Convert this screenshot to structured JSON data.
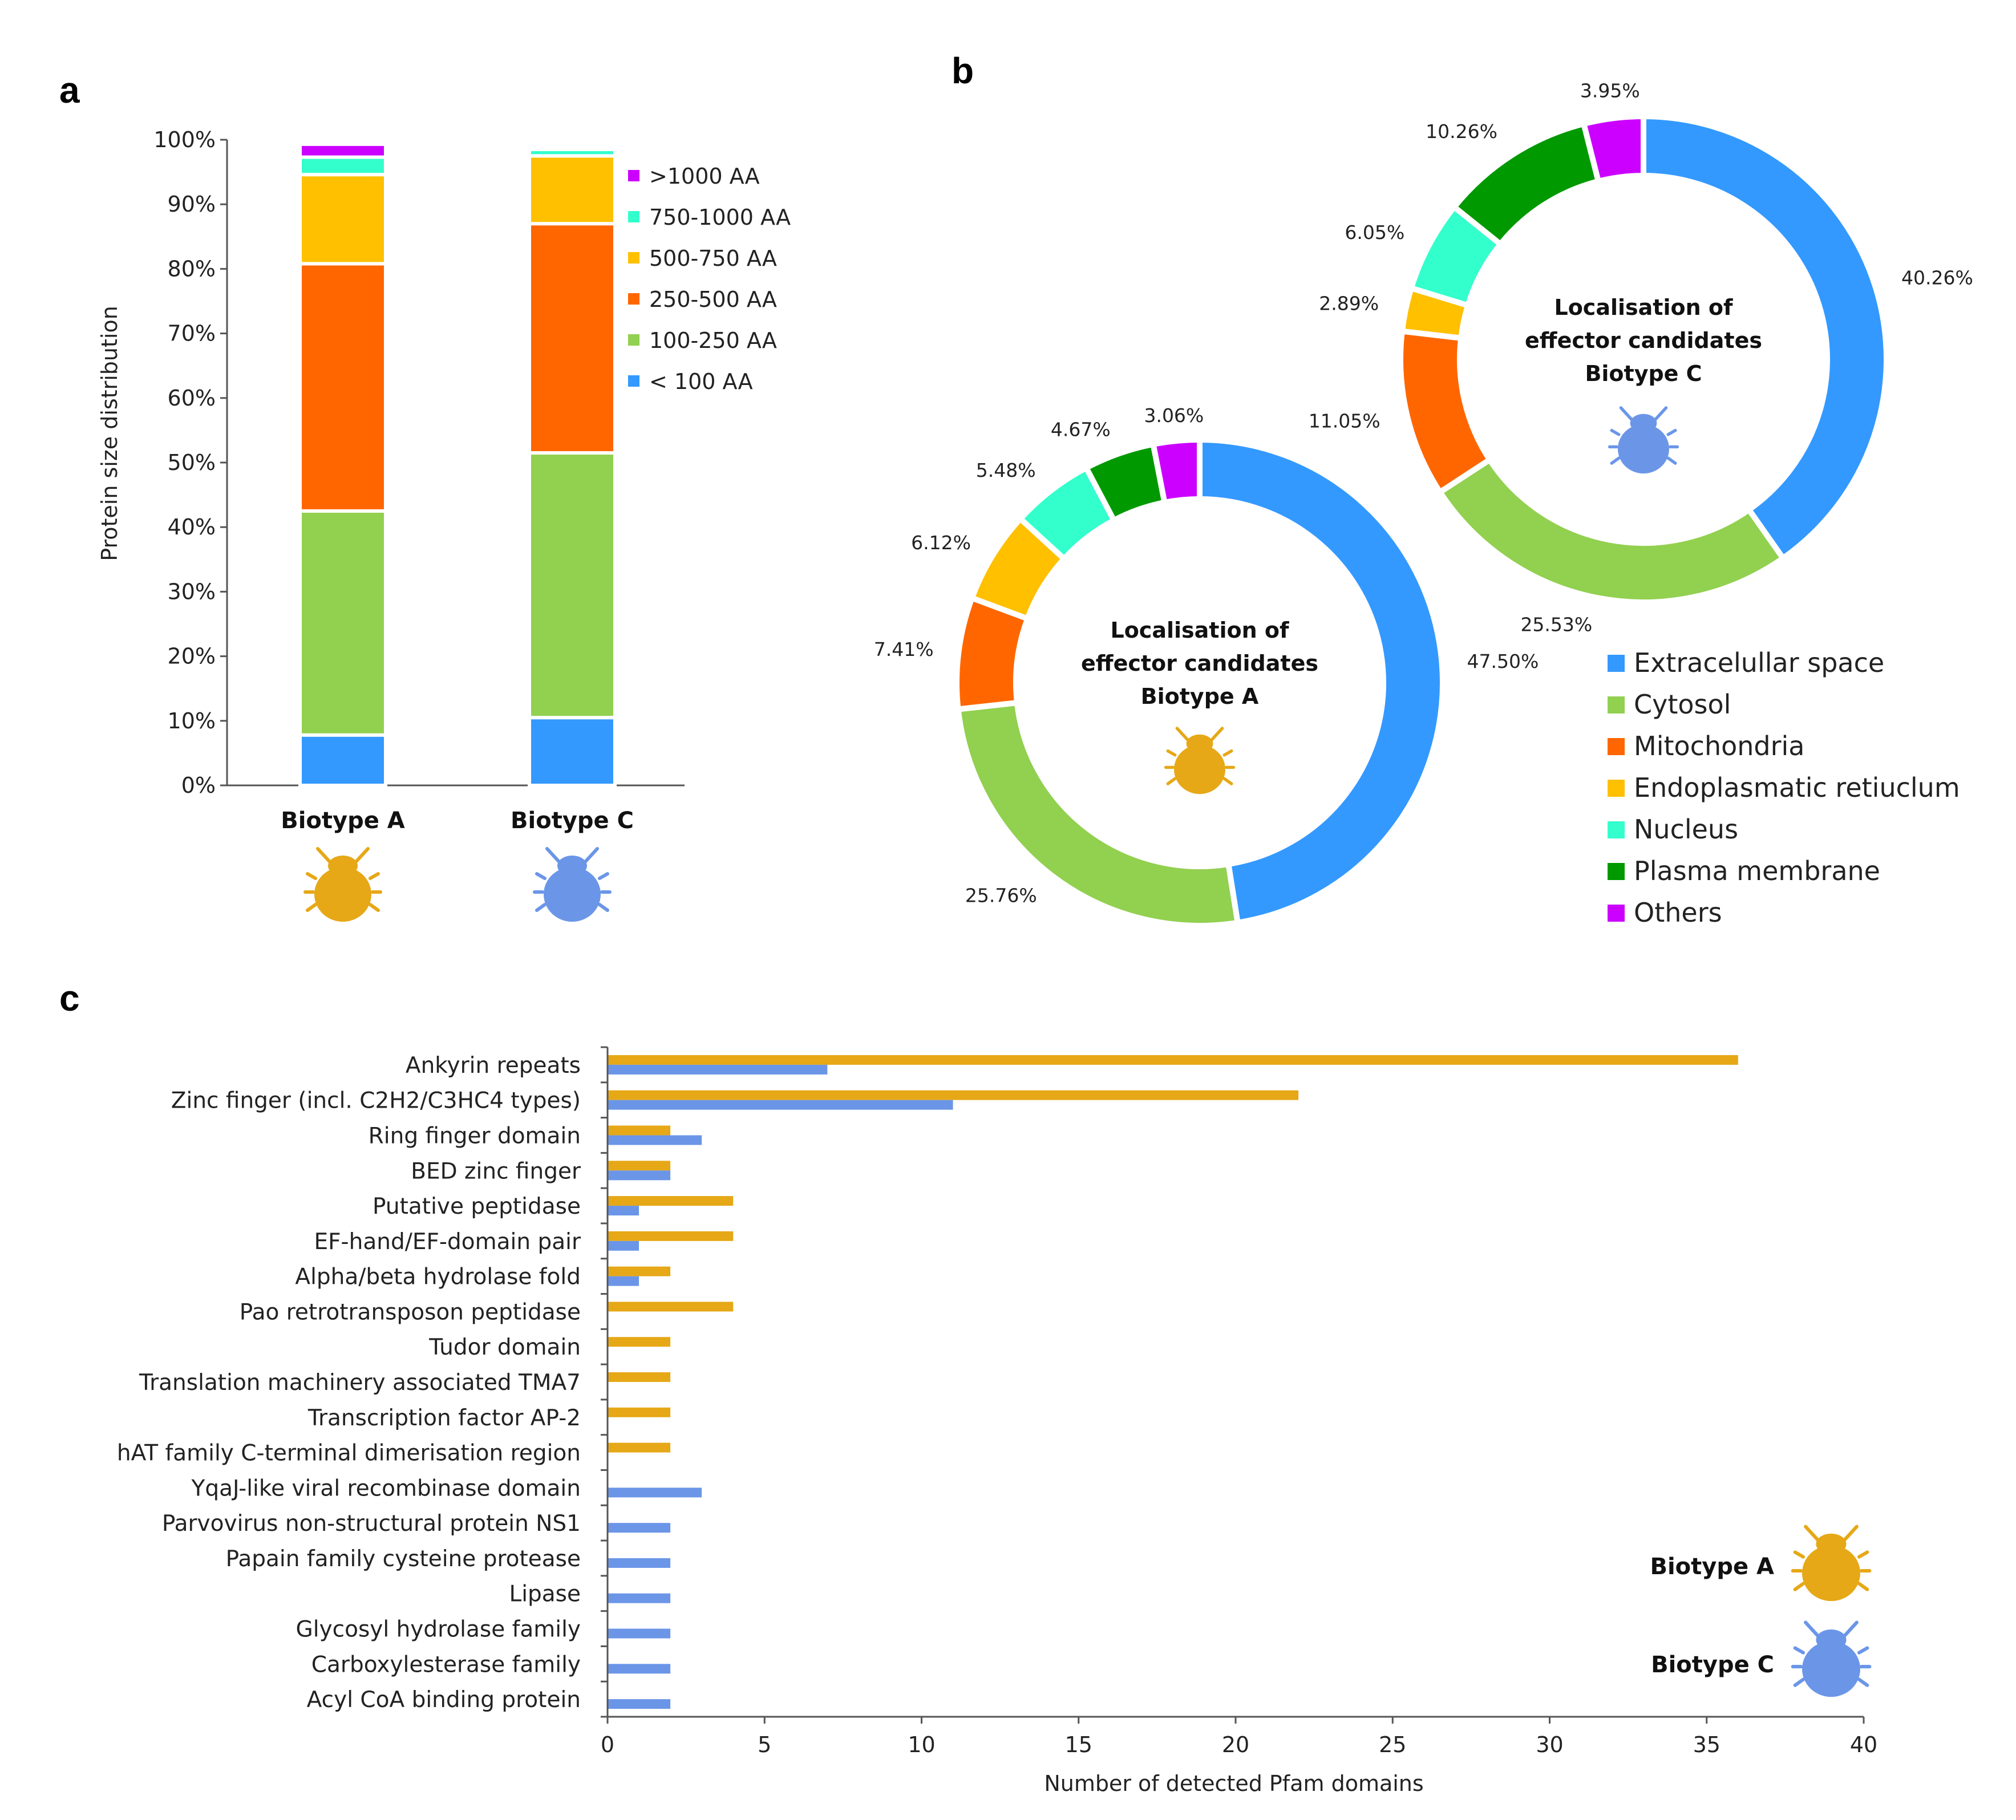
{
  "panel_labels": {
    "a": "a",
    "b": "b",
    "c": "c"
  },
  "colors": {
    "blue": "#3399FF",
    "green": "#92D050",
    "orange": "#FF6600",
    "yellow": "#FFC000",
    "teal": "#33FFCC",
    "darkgreen": "#009900",
    "magenta": "#CC00FF",
    "bugA": "#E6A817",
    "bugC": "#6B96E8",
    "barA": "#E6A817",
    "barC": "#6B96E8"
  },
  "chart_data": [
    {
      "id": "a",
      "type": "bar",
      "stacked": true,
      "categories": [
        "Biotype A",
        "Biotype C"
      ],
      "ylabel": "Protein size distribution",
      "ylim": [
        0,
        100
      ],
      "yticks": [
        "0%",
        "10%",
        "20%",
        "30%",
        "40%",
        "50%",
        "60%",
        "70%",
        "80%",
        "90%",
        "100%"
      ],
      "series": [
        {
          "name": "< 100 AA",
          "color_key": "blue",
          "values": [
            7.8,
            10.5
          ]
        },
        {
          "name": "100-250 AA",
          "color_key": "green",
          "values": [
            34.7,
            41.0
          ]
        },
        {
          "name": "250-500 AA",
          "color_key": "orange",
          "values": [
            38.3,
            35.5
          ]
        },
        {
          "name": "500-750 AA",
          "color_key": "yellow",
          "values": [
            13.8,
            10.5
          ]
        },
        {
          "name": "750-1000 AA",
          "color_key": "teal",
          "values": [
            2.7,
            1.0
          ]
        },
        {
          "name": ">1000 AA",
          "color_key": "magenta",
          "values": [
            2.0,
            0.0
          ]
        }
      ],
      "legend_order": [
        ">1000 AA",
        "750-1000 AA",
        "500-750 AA",
        "250-500 AA",
        "100-250 AA",
        "< 100 AA"
      ],
      "legend_position": "right"
    },
    {
      "id": "b-A",
      "type": "pie",
      "donut": true,
      "title_lines": [
        "Localisation of",
        "effector candidates",
        "Biotype A"
      ],
      "slices": [
        {
          "name": "Extracelullar space",
          "color_key": "blue",
          "value": 47.5,
          "label": "47.50%"
        },
        {
          "name": "Cytosol",
          "color_key": "green",
          "value": 25.76,
          "label": "25.76%"
        },
        {
          "name": "Mitochondria",
          "color_key": "orange",
          "value": 7.41,
          "label": "7.41%"
        },
        {
          "name": "Endoplasmatic retiuclum",
          "color_key": "yellow",
          "value": 6.12,
          "label": "6.12%"
        },
        {
          "name": "Nucleus",
          "color_key": "teal",
          "value": 5.48,
          "label": "5.48%"
        },
        {
          "name": "Plasma membrane",
          "color_key": "darkgreen",
          "value": 4.67,
          "label": "4.67%"
        },
        {
          "name": "Others",
          "color_key": "magenta",
          "value": 3.06,
          "label": "3.06%"
        }
      ]
    },
    {
      "id": "b-C",
      "type": "pie",
      "donut": true,
      "title_lines": [
        "Localisation of",
        "effector candidates",
        "Biotype C"
      ],
      "slices": [
        {
          "name": "Extracelullar space",
          "color_key": "blue",
          "value": 40.26,
          "label": "40.26%"
        },
        {
          "name": "Cytosol",
          "color_key": "green",
          "value": 25.53,
          "label": "25.53%"
        },
        {
          "name": "Mitochondria",
          "color_key": "orange",
          "value": 11.05,
          "label": "11.05%"
        },
        {
          "name": "Endoplasmatic retiuclum",
          "color_key": "yellow",
          "value": 2.89,
          "label": "2.89%"
        },
        {
          "name": "Nucleus",
          "color_key": "teal",
          "value": 6.05,
          "label": "6.05%"
        },
        {
          "name": "Plasma membrane",
          "color_key": "darkgreen",
          "value": 10.26,
          "label": "10.26%"
        },
        {
          "name": "Others",
          "color_key": "magenta",
          "value": 3.95,
          "label": "3.95%"
        }
      ]
    },
    {
      "id": "c",
      "type": "bar",
      "orientation": "horizontal",
      "xlabel": "Number of detected Pfam domains",
      "xlim": [
        0,
        40
      ],
      "xticks": [
        0,
        5,
        10,
        15,
        20,
        25,
        30,
        35,
        40
      ],
      "categories": [
        "Ankyrin repeats",
        "Zinc finger (incl. C2H2/C3HC4 types)",
        "Ring finger domain",
        "BED zinc finger",
        "Putative peptidase",
        "EF-hand/EF-domain pair",
        "Alpha/beta hydrolase fold",
        "Pao retrotransposon peptidase",
        "Tudor domain",
        "Translation machinery associated TMA7",
        "Transcription factor AP-2",
        "hAT family C-terminal dimerisation region",
        "YqaJ-like viral recombinase domain",
        "Parvovirus non-structural protein NS1",
        "Papain family cysteine protease",
        "Lipase",
        "Glycosyl hydrolase family",
        "Carboxylesterase family",
        "Acyl CoA binding protein"
      ],
      "series": [
        {
          "name": "Biotype A",
          "color_key": "barA",
          "values": [
            36,
            22,
            2,
            2,
            4,
            4,
            2,
            4,
            2,
            2,
            2,
            2,
            0,
            0,
            0,
            0,
            0,
            0,
            0
          ]
        },
        {
          "name": "Biotype C",
          "color_key": "barC",
          "values": [
            7,
            11,
            3,
            2,
            1,
            1,
            1,
            0,
            0,
            0,
            0,
            0,
            3,
            2,
            2,
            2,
            2,
            2,
            2
          ]
        }
      ],
      "legend": [
        {
          "label": "Biotype A",
          "icon": "bug-icon",
          "color_key": "bugA"
        },
        {
          "label": "Biotype C",
          "icon": "bug-icon",
          "color_key": "bugC"
        }
      ],
      "legend_position": "bottom-right"
    }
  ]
}
